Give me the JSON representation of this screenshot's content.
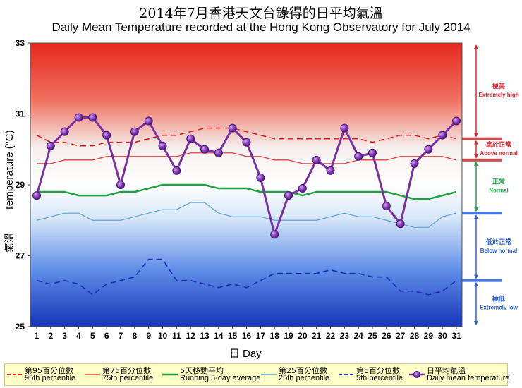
{
  "title_zh": "2014年7月香港天文台錄得的日平均氣溫",
  "title_en": "Daily Mean Temperature recorded at the Hong Kong Observatory for July 2014",
  "chart_data": {
    "type": "line",
    "xlabel_zh": "日",
    "xlabel_en": "Day",
    "ylabel_en": "Temperature (°C)",
    "ylabel_zh": "氣溫",
    "ylim": [
      25,
      33
    ],
    "yticks": [
      25,
      27,
      29,
      31,
      33
    ],
    "x": [
      1,
      2,
      3,
      4,
      5,
      6,
      7,
      8,
      9,
      10,
      11,
      12,
      13,
      14,
      15,
      16,
      17,
      18,
      19,
      20,
      21,
      22,
      23,
      24,
      25,
      26,
      27,
      28,
      29,
      30,
      31
    ],
    "series": [
      {
        "key": "p95",
        "name_zh": "第95百分位數",
        "name_en": "95th percentile",
        "color": "#e02020",
        "style": "dashed",
        "values": [
          30.4,
          30.2,
          30.2,
          30.1,
          30.1,
          30.2,
          30.2,
          30.2,
          30.3,
          30.4,
          30.4,
          30.5,
          30.6,
          30.6,
          30.6,
          30.5,
          30.4,
          30.3,
          30.3,
          30.3,
          30.3,
          30.3,
          30.3,
          30.3,
          30.2,
          30.3,
          30.4,
          30.4,
          30.3,
          30.4,
          30.3
        ]
      },
      {
        "key": "p75",
        "name_zh": "第75百分位數",
        "name_en": "75th percentile",
        "color": "#e04040",
        "style": "solid",
        "values": [
          29.6,
          29.6,
          29.7,
          29.7,
          29.7,
          29.8,
          29.8,
          29.8,
          29.8,
          29.8,
          29.8,
          29.9,
          29.9,
          29.9,
          29.9,
          29.8,
          29.8,
          29.7,
          29.7,
          29.6,
          29.6,
          29.6,
          29.6,
          29.7,
          29.7,
          29.7,
          29.8,
          29.8,
          29.8,
          29.8,
          29.7
        ]
      },
      {
        "key": "avg5",
        "name_zh": "5天移動平均",
        "name_en": "Running 5-day average",
        "color": "#20a040",
        "style": "solid",
        "values": [
          28.8,
          28.8,
          28.8,
          28.7,
          28.7,
          28.7,
          28.8,
          28.8,
          28.9,
          29.0,
          29.0,
          29.0,
          29.0,
          28.9,
          28.9,
          28.9,
          28.8,
          28.8,
          28.8,
          28.7,
          28.8,
          28.8,
          28.8,
          28.8,
          28.8,
          28.8,
          28.7,
          28.6,
          28.6,
          28.7,
          28.8
        ]
      },
      {
        "key": "p25",
        "name_zh": "第25百分位數",
        "name_en": "25th percentile",
        "color": "#5aa6d6",
        "style": "solid",
        "values": [
          28.0,
          28.1,
          28.2,
          28.2,
          28.0,
          28.0,
          28.0,
          28.1,
          28.2,
          28.3,
          28.3,
          28.5,
          28.5,
          28.2,
          28.1,
          28.1,
          28.1,
          28.0,
          28.0,
          28.0,
          28.0,
          28.1,
          28.2,
          28.1,
          28.1,
          28.0,
          27.9,
          27.8,
          27.8,
          28.1,
          28.2
        ]
      },
      {
        "key": "p5",
        "name_zh": "第5百分位數",
        "name_en": "5th percentile",
        "color": "#1a2fb0",
        "style": "dashed",
        "values": [
          26.3,
          26.2,
          26.3,
          26.2,
          25.9,
          26.2,
          26.3,
          26.4,
          26.9,
          26.9,
          26.3,
          26.3,
          26.2,
          26.1,
          26.2,
          26.1,
          26.3,
          26.5,
          26.5,
          26.5,
          26.5,
          26.6,
          26.5,
          26.5,
          26.4,
          26.4,
          26.0,
          26.0,
          25.9,
          26.0,
          26.3
        ]
      },
      {
        "key": "daily",
        "name_zh": "日平均氣溫",
        "name_en": "Daily mean temperature",
        "color": "#7a2fa0",
        "style": "marker",
        "values": [
          28.7,
          30.1,
          30.5,
          30.9,
          30.9,
          30.4,
          29.0,
          30.5,
          30.8,
          30.1,
          29.4,
          30.3,
          30.0,
          29.9,
          30.6,
          30.2,
          29.2,
          27.6,
          28.7,
          28.9,
          29.7,
          29.4,
          30.6,
          29.8,
          29.9,
          28.4,
          27.9,
          29.6,
          30.0,
          30.4,
          30.8
        ]
      }
    ],
    "categories": [
      {
        "key": "extreme_high",
        "zh": "極高",
        "en": "Extremely high",
        "color": "#e0262f"
      },
      {
        "key": "above_normal",
        "zh": "高於正常",
        "en": "Above normal",
        "color": "#e0262f"
      },
      {
        "key": "normal",
        "zh": "正常",
        "en": "Normal",
        "color": "#1fa64a"
      },
      {
        "key": "below_normal",
        "zh": "低於正常",
        "en": "Below normal",
        "color": "#2a63d8"
      },
      {
        "key": "extreme_low",
        "zh": "極低",
        "en": "Extremely low",
        "color": "#2a63d8"
      }
    ]
  }
}
